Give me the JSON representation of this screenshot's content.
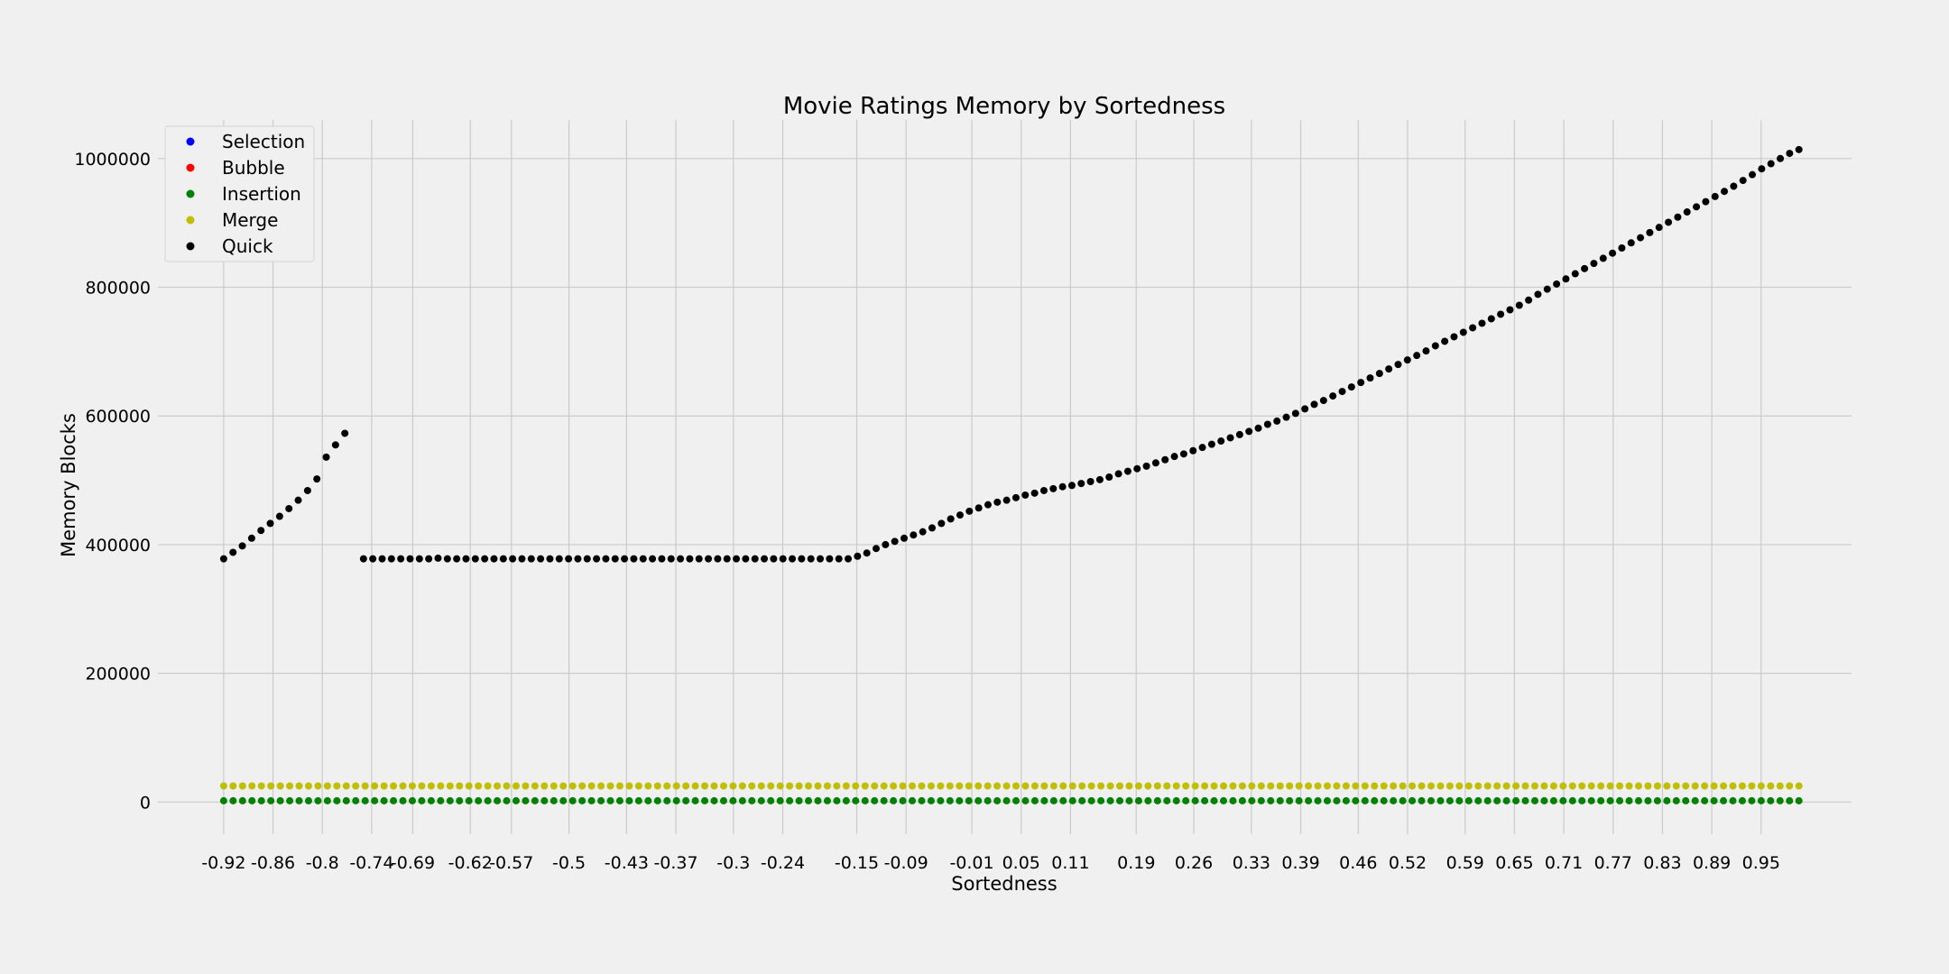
{
  "chart_data": {
    "type": "scatter",
    "title": "Movie Ratings Memory by Sortedness",
    "xlabel": "Sortedness",
    "ylabel": "Memory Blocks",
    "xlim": [
      -1.0,
      1.06
    ],
    "ylim": [
      -50000,
      1060000
    ],
    "grid": true,
    "legend_position": "top-left",
    "x_tick_labels": [
      "-0.92",
      "-0.86",
      "-0.8",
      "-0.74",
      "-0.69",
      "-0.62",
      "-0.57",
      "-0.5",
      "-0.43",
      "-0.37",
      "-0.3",
      "-0.24",
      "-0.15",
      "-0.09",
      "-0.01",
      "0.05",
      "0.11",
      "0.19",
      "0.26",
      "0.33",
      "0.39",
      "0.46",
      "0.52",
      "0.59",
      "0.65",
      "0.71",
      "0.77",
      "0.83",
      "0.89",
      "0.95"
    ],
    "y_tick_labels": [
      "0",
      "200000",
      "400000",
      "600000",
      "800000",
      "1000000"
    ],
    "y_tick_values": [
      0,
      200000,
      400000,
      600000,
      800000,
      1000000
    ],
    "x_range": [
      -0.92,
      0.996
    ],
    "series": [
      {
        "name": "Selection",
        "color": "#0000ff",
        "values": []
      },
      {
        "name": "Bubble",
        "color": "#ff0000",
        "values": []
      },
      {
        "name": "Insertion",
        "color": "#008000",
        "values": [
          2000,
          2000,
          2000,
          2000,
          2000,
          2000,
          2000,
          2000,
          2000,
          2000,
          2000,
          2000,
          2000,
          2000,
          2000,
          2000,
          2000,
          2000,
          2000,
          2000,
          2000,
          2000,
          2000,
          2000,
          2000,
          2000,
          2000,
          2000,
          2000,
          2000,
          2000,
          2000,
          2000,
          2000,
          2000,
          2000,
          2000,
          2000,
          2000,
          2000,
          2000,
          2000,
          2000,
          2000,
          2000,
          2000,
          2000,
          2000,
          2000,
          2000,
          2000,
          2000,
          2000,
          2000,
          2000,
          2000,
          2000,
          2000,
          2000,
          2000,
          2000,
          2000,
          2000,
          2000,
          2000,
          2000,
          2000,
          2000,
          2000,
          2000,
          2000,
          2000,
          2000,
          2000,
          2000,
          2000,
          2000,
          2000,
          2000,
          2000,
          2000,
          2000,
          2000,
          2000,
          2000,
          2000,
          2000,
          2000,
          2000,
          2000,
          2000,
          2000,
          2000,
          2000,
          2000,
          2000,
          2000,
          2000,
          2000,
          2000,
          2000,
          2000,
          2000,
          2000,
          2000,
          2000,
          2000,
          2000,
          2000,
          2000,
          2000,
          2000,
          2000,
          2000,
          2000,
          2000,
          2000,
          2000,
          2000,
          2000,
          2000,
          2000,
          2000,
          2000,
          2000,
          2000,
          2000,
          2000,
          2000,
          2000,
          2000,
          2000,
          2000,
          2000,
          2000,
          2000,
          2000,
          2000,
          2000,
          2000,
          2000,
          2000,
          2000,
          2000,
          2000,
          2000,
          2000,
          2000,
          2000,
          2000,
          2000,
          2000,
          2000,
          2000,
          2000,
          2000,
          2000,
          2000,
          2000,
          2000,
          2000,
          2000,
          2000,
          2000,
          2000,
          2000,
          2000,
          2000
        ]
      },
      {
        "name": "Merge",
        "color": "#bfbf00",
        "values": [
          25000,
          25000,
          25000,
          25000,
          25000,
          25000,
          25000,
          25000,
          25000,
          25000,
          25000,
          25000,
          25000,
          25000,
          25000,
          25000,
          25000,
          25000,
          25000,
          25000,
          25000,
          25000,
          25000,
          25000,
          25000,
          25000,
          25000,
          25000,
          25000,
          25000,
          25000,
          25000,
          25000,
          25000,
          25000,
          25000,
          25000,
          25000,
          25000,
          25000,
          25000,
          25000,
          25000,
          25000,
          25000,
          25000,
          25000,
          25000,
          25000,
          25000,
          25000,
          25000,
          25000,
          25000,
          25000,
          25000,
          25000,
          25000,
          25000,
          25000,
          25000,
          25000,
          25000,
          25000,
          25000,
          25000,
          25000,
          25000,
          25000,
          25000,
          25000,
          25000,
          25000,
          25000,
          25000,
          25000,
          25000,
          25000,
          25000,
          25000,
          25000,
          25000,
          25000,
          25000,
          25000,
          25000,
          25000,
          25000,
          25000,
          25000,
          25000,
          25000,
          25000,
          25000,
          25000,
          25000,
          25000,
          25000,
          25000,
          25000,
          25000,
          25000,
          25000,
          25000,
          25000,
          25000,
          25000,
          25000,
          25000,
          25000,
          25000,
          25000,
          25000,
          25000,
          25000,
          25000,
          25000,
          25000,
          25000,
          25000,
          25000,
          25000,
          25000,
          25000,
          25000,
          25000,
          25000,
          25000,
          25000,
          25000,
          25000,
          25000,
          25000,
          25000,
          25000,
          25000,
          25000,
          25000,
          25000,
          25000,
          25000,
          25000,
          25000,
          25000,
          25000,
          25000,
          25000,
          25000,
          25000,
          25000,
          25000,
          25000,
          25000,
          25000,
          25000,
          25000,
          25000,
          25000,
          25000,
          25000,
          25000,
          25000,
          25000,
          25000,
          25000,
          25000,
          25000,
          25000
        ]
      },
      {
        "name": "Quick",
        "color": "#000000",
        "values": [
          378000,
          388000,
          398000,
          410000,
          422000,
          433000,
          444000,
          456000,
          469000,
          484000,
          502000,
          536000,
          555000,
          573000,
          null,
          378000,
          378000,
          378000,
          378000,
          378000,
          378000,
          378000,
          378000,
          379000,
          378000,
          378000,
          378000,
          378000,
          378000,
          378000,
          378000,
          378000,
          378000,
          378000,
          378000,
          378000,
          378000,
          378000,
          378000,
          378000,
          378000,
          378000,
          378000,
          378000,
          378000,
          378000,
          378000,
          378000,
          378000,
          378000,
          378000,
          378000,
          378000,
          378000,
          378000,
          378000,
          378000,
          378000,
          378000,
          378000,
          378000,
          378000,
          378000,
          378000,
          378000,
          378000,
          378000,
          378000,
          382000,
          387000,
          394000,
          400000,
          405000,
          410000,
          415000,
          420000,
          426000,
          433000,
          440000,
          446000,
          452000,
          457000,
          462000,
          466000,
          469000,
          473000,
          477000,
          480000,
          484000,
          487000,
          490000,
          492000,
          495000,
          498000,
          501000,
          505000,
          510000,
          514000,
          518000,
          522000,
          527000,
          532000,
          537000,
          541000,
          546000,
          551000,
          556000,
          561000,
          566000,
          571000,
          576000,
          581000,
          587000,
          592000,
          598000,
          604000,
          611000,
          618000,
          624000,
          631000,
          638000,
          645000,
          652000,
          659000,
          666000,
          673000,
          680000,
          687000,
          694000,
          701000,
          709000,
          716000,
          723000,
          730000,
          737000,
          744000,
          751000,
          758000,
          765000,
          772000,
          780000,
          789000,
          797000,
          805000,
          813000,
          821000,
          829000,
          837000,
          845000,
          853000,
          861000,
          869000,
          877000,
          885000,
          893000,
          901000,
          909000,
          917000,
          925000,
          933000,
          941000,
          949000,
          957000,
          966000,
          975000,
          984000,
          992000,
          1000000,
          1008000,
          1014000
        ]
      }
    ]
  }
}
